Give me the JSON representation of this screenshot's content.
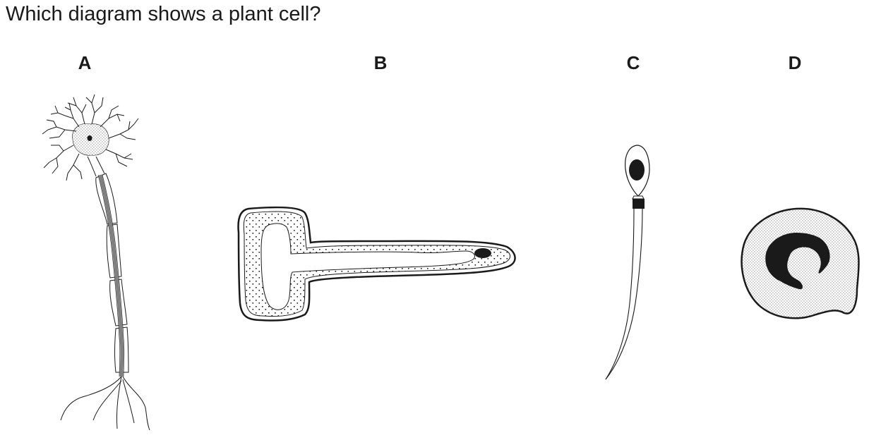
{
  "question": {
    "text": "Which diagram shows a plant cell?"
  },
  "options": [
    {
      "label": "A",
      "icon": "neuron-cell-icon"
    },
    {
      "label": "B",
      "icon": "root-hair-cell-icon"
    },
    {
      "label": "C",
      "icon": "sperm-cell-icon"
    },
    {
      "label": "D",
      "icon": "white-blood-cell-icon"
    }
  ],
  "colors": {
    "ink": "#1a1a1a",
    "axon_core": "#808080",
    "background": "#ffffff"
  }
}
